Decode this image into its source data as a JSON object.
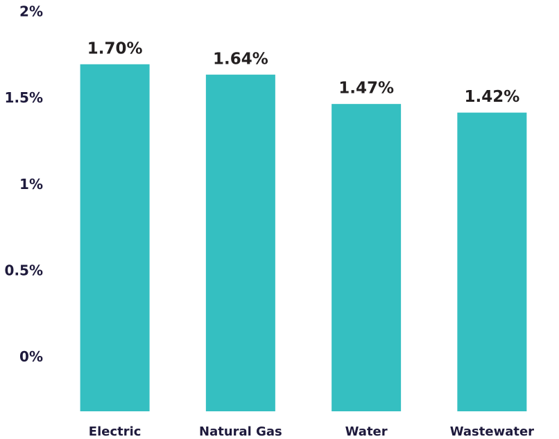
{
  "chart_data": {
    "type": "bar",
    "categories": [
      "Electric",
      "Natural Gas",
      "Water",
      "Wastewater"
    ],
    "values": [
      1.7,
      1.64,
      1.47,
      1.42
    ],
    "value_labels": [
      "1.70%",
      "1.64%",
      "1.47%",
      "1.42%"
    ],
    "color": "#35bfc1",
    "ylim": [
      -0.31,
      2
    ],
    "yticks": [
      {
        "value": 0,
        "label": "0%"
      },
      {
        "value": 0.5,
        "label": "0.5%"
      },
      {
        "value": 1,
        "label": "1%"
      },
      {
        "value": 1.5,
        "label": "1.5%"
      },
      {
        "value": 2,
        "label": "2%"
      }
    ],
    "grid": false
  }
}
